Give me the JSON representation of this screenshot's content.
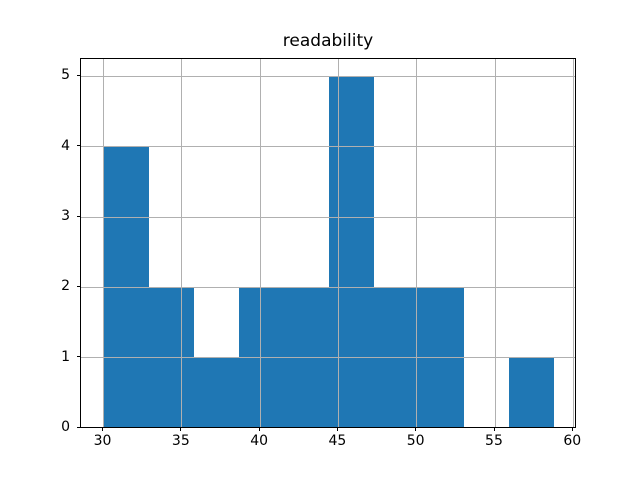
{
  "chart_data": {
    "type": "bar",
    "subtype": "histogram",
    "title": "readability",
    "xlabel": "",
    "ylabel": "",
    "bin_edges": [
      30.0,
      32.88,
      35.76,
      38.64,
      41.52,
      44.4,
      47.28,
      50.16,
      53.04,
      55.92,
      58.8
    ],
    "counts": [
      4,
      2,
      1,
      2,
      2,
      5,
      2,
      2,
      0,
      1
    ],
    "x_ticks": [
      30,
      35,
      40,
      45,
      50,
      55,
      60
    ],
    "y_ticks": [
      0,
      1,
      2,
      3,
      4,
      5
    ],
    "xlim": [
      28.56,
      60.24
    ],
    "ylim": [
      0,
      5.25
    ],
    "grid": true,
    "legend": "none",
    "colors": {
      "bar_fill": "#1f77b4",
      "grid_line": "#b0b0b0",
      "axis_line": "#000000",
      "text": "#000000",
      "background": "#ffffff"
    }
  }
}
